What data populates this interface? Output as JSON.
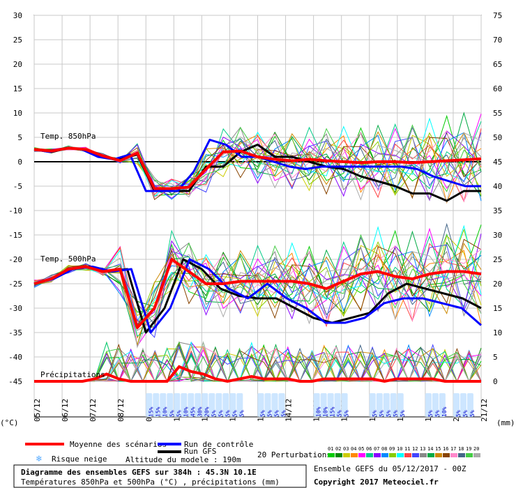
{
  "chart_data": {
    "type": "line",
    "left_axis": {
      "unit": "(°C)",
      "ticks": [
        30,
        25,
        20,
        15,
        10,
        5,
        0,
        -5,
        -10,
        -15,
        -20,
        -25,
        -30,
        -35,
        -40,
        -45
      ],
      "range": [
        -45,
        30
      ]
    },
    "right_axis": {
      "unit": "(mm)",
      "ticks": [
        75,
        70,
        65,
        60,
        55,
        50,
        45,
        40,
        35,
        30,
        25,
        20,
        15,
        10,
        5,
        0
      ],
      "range": [
        0,
        75
      ]
    },
    "x_labels": [
      "05/12",
      "06/12",
      "07/12",
      "08/12",
      "09/12",
      "10/12",
      "11/12",
      "12/12",
      "13/12",
      "14/12",
      "15/12",
      "16/12",
      "17/12",
      "18/12",
      "19/12",
      "20/12",
      "21/12"
    ],
    "panel_labels": {
      "t850": "Temp. 850hPa",
      "t500": "Temp. 500hPa",
      "precip": "Précipitations"
    },
    "series": [
      {
        "name": "Moyenne des scénarios",
        "color": "#ff0000",
        "t850": [
          2.5,
          2.2,
          2.8,
          2.5,
          1.2,
          0.2,
          1.8,
          -5.5,
          -5.5,
          -5.2,
          -1.5,
          2.0,
          2.2,
          1.0,
          0.5,
          0.2,
          0.5,
          0.2,
          0.0,
          -0.2,
          0.0,
          0.0,
          -0.2,
          0.0,
          0.2,
          0.4,
          0.6
        ],
        "t500": [
          -25,
          -24,
          -22,
          -21.5,
          -22.5,
          -22,
          -34,
          -30,
          -20,
          -22.5,
          -25,
          -25,
          -24.5,
          -24.5,
          -24.5,
          -24.5,
          -25,
          -26,
          -24.5,
          -23,
          -22.5,
          -23.5,
          -24,
          -23,
          -22.5,
          -22.5,
          -23
        ],
        "precip": [
          0,
          0,
          0,
          0,
          0,
          0.5,
          1.5,
          0.5,
          0,
          0,
          0,
          0,
          3,
          2,
          1.5,
          0.5,
          0,
          0.5,
          1,
          0.5,
          0.5,
          0.5,
          0,
          0,
          0.5,
          0.5,
          0.5,
          0.5,
          0.5,
          0,
          0.5,
          0.5,
          0.5,
          0.5,
          0,
          0,
          0,
          0
        ]
      },
      {
        "name": "Run de contrôle",
        "color": "#0000ff",
        "t850": [
          2.5,
          2.0,
          2.8,
          2.5,
          1.0,
          0.5,
          1.5,
          -6.0,
          -6.0,
          -6.0,
          -2.0,
          4.5,
          3.5,
          1.0,
          1.0,
          0.0,
          -1.0,
          -1.5,
          -1.0,
          -1.0,
          -1.0,
          -1.0,
          -1.0,
          -1.0,
          -1.5,
          -3.0,
          -4.0,
          -5.0,
          -5.0
        ],
        "t500": [
          -25,
          -24,
          -22,
          -21.5,
          -22.5,
          -22,
          -35,
          -30,
          -20,
          -22,
          -26,
          -28,
          -25,
          -28,
          -30,
          -33,
          -33,
          -32,
          -29,
          -28,
          -28,
          -29,
          -30,
          -33.5
        ]
      },
      {
        "name": "Run GFS",
        "color": "#000000",
        "t850": [
          2.5,
          2.0,
          2.8,
          2.5,
          1.0,
          0.5,
          1.5,
          -6.0,
          -6.0,
          -6.0,
          -1.0,
          -1.0,
          2.0,
          3.5,
          1.0,
          1.0,
          0.0,
          -1.0,
          -1.5,
          -3.0,
          -4.0,
          -5.0,
          -6.5,
          -6.5,
          -8.0,
          -6.0,
          -6.0
        ],
        "t500": [
          -25,
          -24,
          -22,
          -21.5,
          -22.5,
          -22,
          -35,
          -30,
          -20,
          -22,
          -26,
          -27.5,
          -28,
          -28,
          -30,
          -32,
          -33,
          -32,
          -31,
          -27,
          -25,
          -26,
          -27,
          -28,
          -30
        ]
      }
    ],
    "snow_risk": [
      {
        "day": "09/12",
        "values": [
          "15%",
          "15%",
          "10%",
          "5%"
        ]
      },
      {
        "day": "10/12",
        "values": [
          "5%",
          "10%",
          "45%",
          "30%",
          "20%",
          "5%",
          "5%",
          "5%",
          "5%",
          "5%"
        ]
      },
      {
        "day": "13/12",
        "values": [
          "5%",
          "5%",
          "5%",
          "5%"
        ]
      },
      {
        "day": "15/12",
        "values": [
          "10%",
          "10%",
          "15%",
          "5%",
          "5%"
        ]
      },
      {
        "day": "17/12",
        "values": [
          "5%",
          "5%",
          "5%",
          "5%",
          "5%"
        ]
      },
      {
        "day": "19/12",
        "values": [
          "5%",
          "5%",
          "10%"
        ]
      },
      {
        "day": "20/12",
        "values": [
          "5%",
          "5%",
          "5%"
        ]
      }
    ]
  },
  "legend": {
    "mean_label": "Moyenne des scénarios",
    "control_label": "Run de contrôle",
    "gfs_label": "Run GFS",
    "snow_label": "Risque neige",
    "altitude_label": "Altitude du modele : 190m",
    "perturbations_label": "20 Perturbations",
    "perturbation_numbers": [
      "01",
      "02",
      "03",
      "04",
      "05",
      "06",
      "07",
      "08",
      "09",
      "10",
      "11",
      "12",
      "13",
      "14",
      "15",
      "16",
      "17",
      "18",
      "19",
      "20"
    ],
    "perturbation_colors": [
      "#00cc00",
      "#008800",
      "#cccc00",
      "#ff8800",
      "#ff00ff",
      "#00cc88",
      "#8800ff",
      "#0088ff",
      "#88cc00",
      "#00ffff",
      "#ff4444",
      "#4444ff",
      "#888888",
      "#00aa44",
      "#cc8800",
      "#884400",
      "#ff88cc",
      "#446688",
      "#44cc44",
      "#aaaaaa"
    ]
  },
  "footer": {
    "title": "Diagramme des ensembles GEFS sur 384h : 45.3N 10.1E",
    "subtitle": "Températures 850hPa et 500hPa (°C) , précipitations (mm)",
    "ensemble_label": "Ensemble GEFS du 05/12/2017 - 00Z",
    "copyright": "Copyright 2017 Meteociel.fr"
  }
}
